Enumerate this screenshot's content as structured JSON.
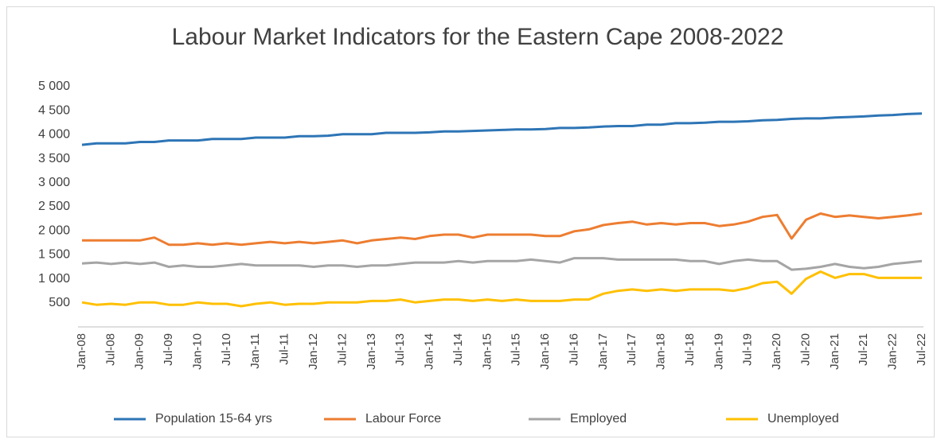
{
  "chart_data": {
    "type": "line",
    "title": "Labour Market Indicators for the Eastern Cape 2008-2022",
    "categories": [
      "Jan-08",
      null,
      "Jul-08",
      null,
      "Jan-09",
      null,
      "Jul-09",
      null,
      "Jan-10",
      null,
      "Jul-10",
      null,
      "Jan-11",
      null,
      "Jul-11",
      null,
      "Jan-12",
      null,
      "Jul-12",
      null,
      "Jan-13",
      null,
      "Jul-13",
      null,
      "Jan-14",
      null,
      "Jul-14",
      null,
      "Jan-15",
      null,
      "Jul-15",
      null,
      "Jan-16",
      null,
      "Jul-16",
      null,
      "Jan-17",
      null,
      "Jul-17",
      null,
      "Jan-18",
      null,
      "Jul-18",
      null,
      "Jan-19",
      null,
      "Jul-19",
      null,
      "Jan-20",
      null,
      "Jul-20",
      null,
      "Jan-21",
      null,
      "Jul-21",
      null,
      "Jan-22",
      null,
      "Jul-22"
    ],
    "series": [
      {
        "name": "Population 15-64 yrs",
        "color": "#2e75b6",
        "values": [
          3790,
          3820,
          3820,
          3820,
          3850,
          3850,
          3880,
          3880,
          3880,
          3910,
          3910,
          3910,
          3940,
          3940,
          3940,
          3970,
          3970,
          3980,
          4010,
          4010,
          4010,
          4040,
          4040,
          4040,
          4050,
          4070,
          4070,
          4080,
          4090,
          4100,
          4110,
          4110,
          4120,
          4140,
          4140,
          4150,
          4170,
          4180,
          4180,
          4210,
          4210,
          4240,
          4240,
          4250,
          4270,
          4270,
          4280,
          4300,
          4310,
          4330,
          4340,
          4340,
          4360,
          4370,
          4380,
          4400,
          4410,
          4430,
          4440
        ]
      },
      {
        "name": "Labour Force",
        "color": "#ed7d31",
        "values": [
          1800,
          1800,
          1800,
          1800,
          1800,
          1860,
          1710,
          1710,
          1740,
          1710,
          1740,
          1710,
          1740,
          1770,
          1740,
          1770,
          1740,
          1770,
          1800,
          1740,
          1800,
          1830,
          1860,
          1830,
          1890,
          1920,
          1920,
          1860,
          1920,
          1920,
          1920,
          1920,
          1890,
          1890,
          1990,
          2030,
          2120,
          2160,
          2190,
          2130,
          2160,
          2130,
          2160,
          2160,
          2100,
          2130,
          2190,
          2290,
          2330,
          1840,
          2230,
          2360,
          2290,
          2320,
          2290,
          2260,
          2290,
          2320,
          2360
        ]
      },
      {
        "name": "Employed",
        "color": "#a5a5a5",
        "values": [
          1320,
          1340,
          1310,
          1340,
          1310,
          1340,
          1250,
          1280,
          1250,
          1250,
          1280,
          1310,
          1280,
          1280,
          1280,
          1280,
          1250,
          1280,
          1280,
          1250,
          1280,
          1280,
          1310,
          1340,
          1340,
          1340,
          1370,
          1340,
          1370,
          1370,
          1370,
          1400,
          1370,
          1340,
          1430,
          1430,
          1430,
          1400,
          1400,
          1400,
          1400,
          1400,
          1370,
          1370,
          1310,
          1370,
          1400,
          1370,
          1370,
          1190,
          1210,
          1250,
          1310,
          1250,
          1220,
          1250,
          1310,
          1340,
          1370
        ]
      },
      {
        "name": "Unemployed",
        "color": "#ffc000",
        "values": [
          510,
          460,
          480,
          460,
          510,
          510,
          460,
          460,
          510,
          480,
          480,
          430,
          480,
          510,
          460,
          480,
          480,
          510,
          510,
          510,
          540,
          540,
          570,
          510,
          540,
          570,
          570,
          540,
          570,
          540,
          570,
          540,
          540,
          540,
          570,
          570,
          690,
          750,
          780,
          750,
          780,
          750,
          780,
          780,
          780,
          750,
          810,
          910,
          940,
          690,
          1000,
          1150,
          1020,
          1100,
          1100,
          1020,
          1020,
          1020,
          1020
        ]
      }
    ],
    "ylim": [
      0,
      5000
    ],
    "yticks": [
      {
        "value": 500,
        "label": "500"
      },
      {
        "value": 1000,
        "label": "1 000"
      },
      {
        "value": 1500,
        "label": "1 500"
      },
      {
        "value": 2000,
        "label": "2 000"
      },
      {
        "value": 2500,
        "label": "2 500"
      },
      {
        "value": 3000,
        "label": "3 000"
      },
      {
        "value": 3500,
        "label": "3 500"
      },
      {
        "value": 4000,
        "label": "4 000"
      },
      {
        "value": 4500,
        "label": "4 500"
      },
      {
        "value": 5000,
        "label": "5 000"
      }
    ],
    "grid": false,
    "legend": "bottom"
  }
}
